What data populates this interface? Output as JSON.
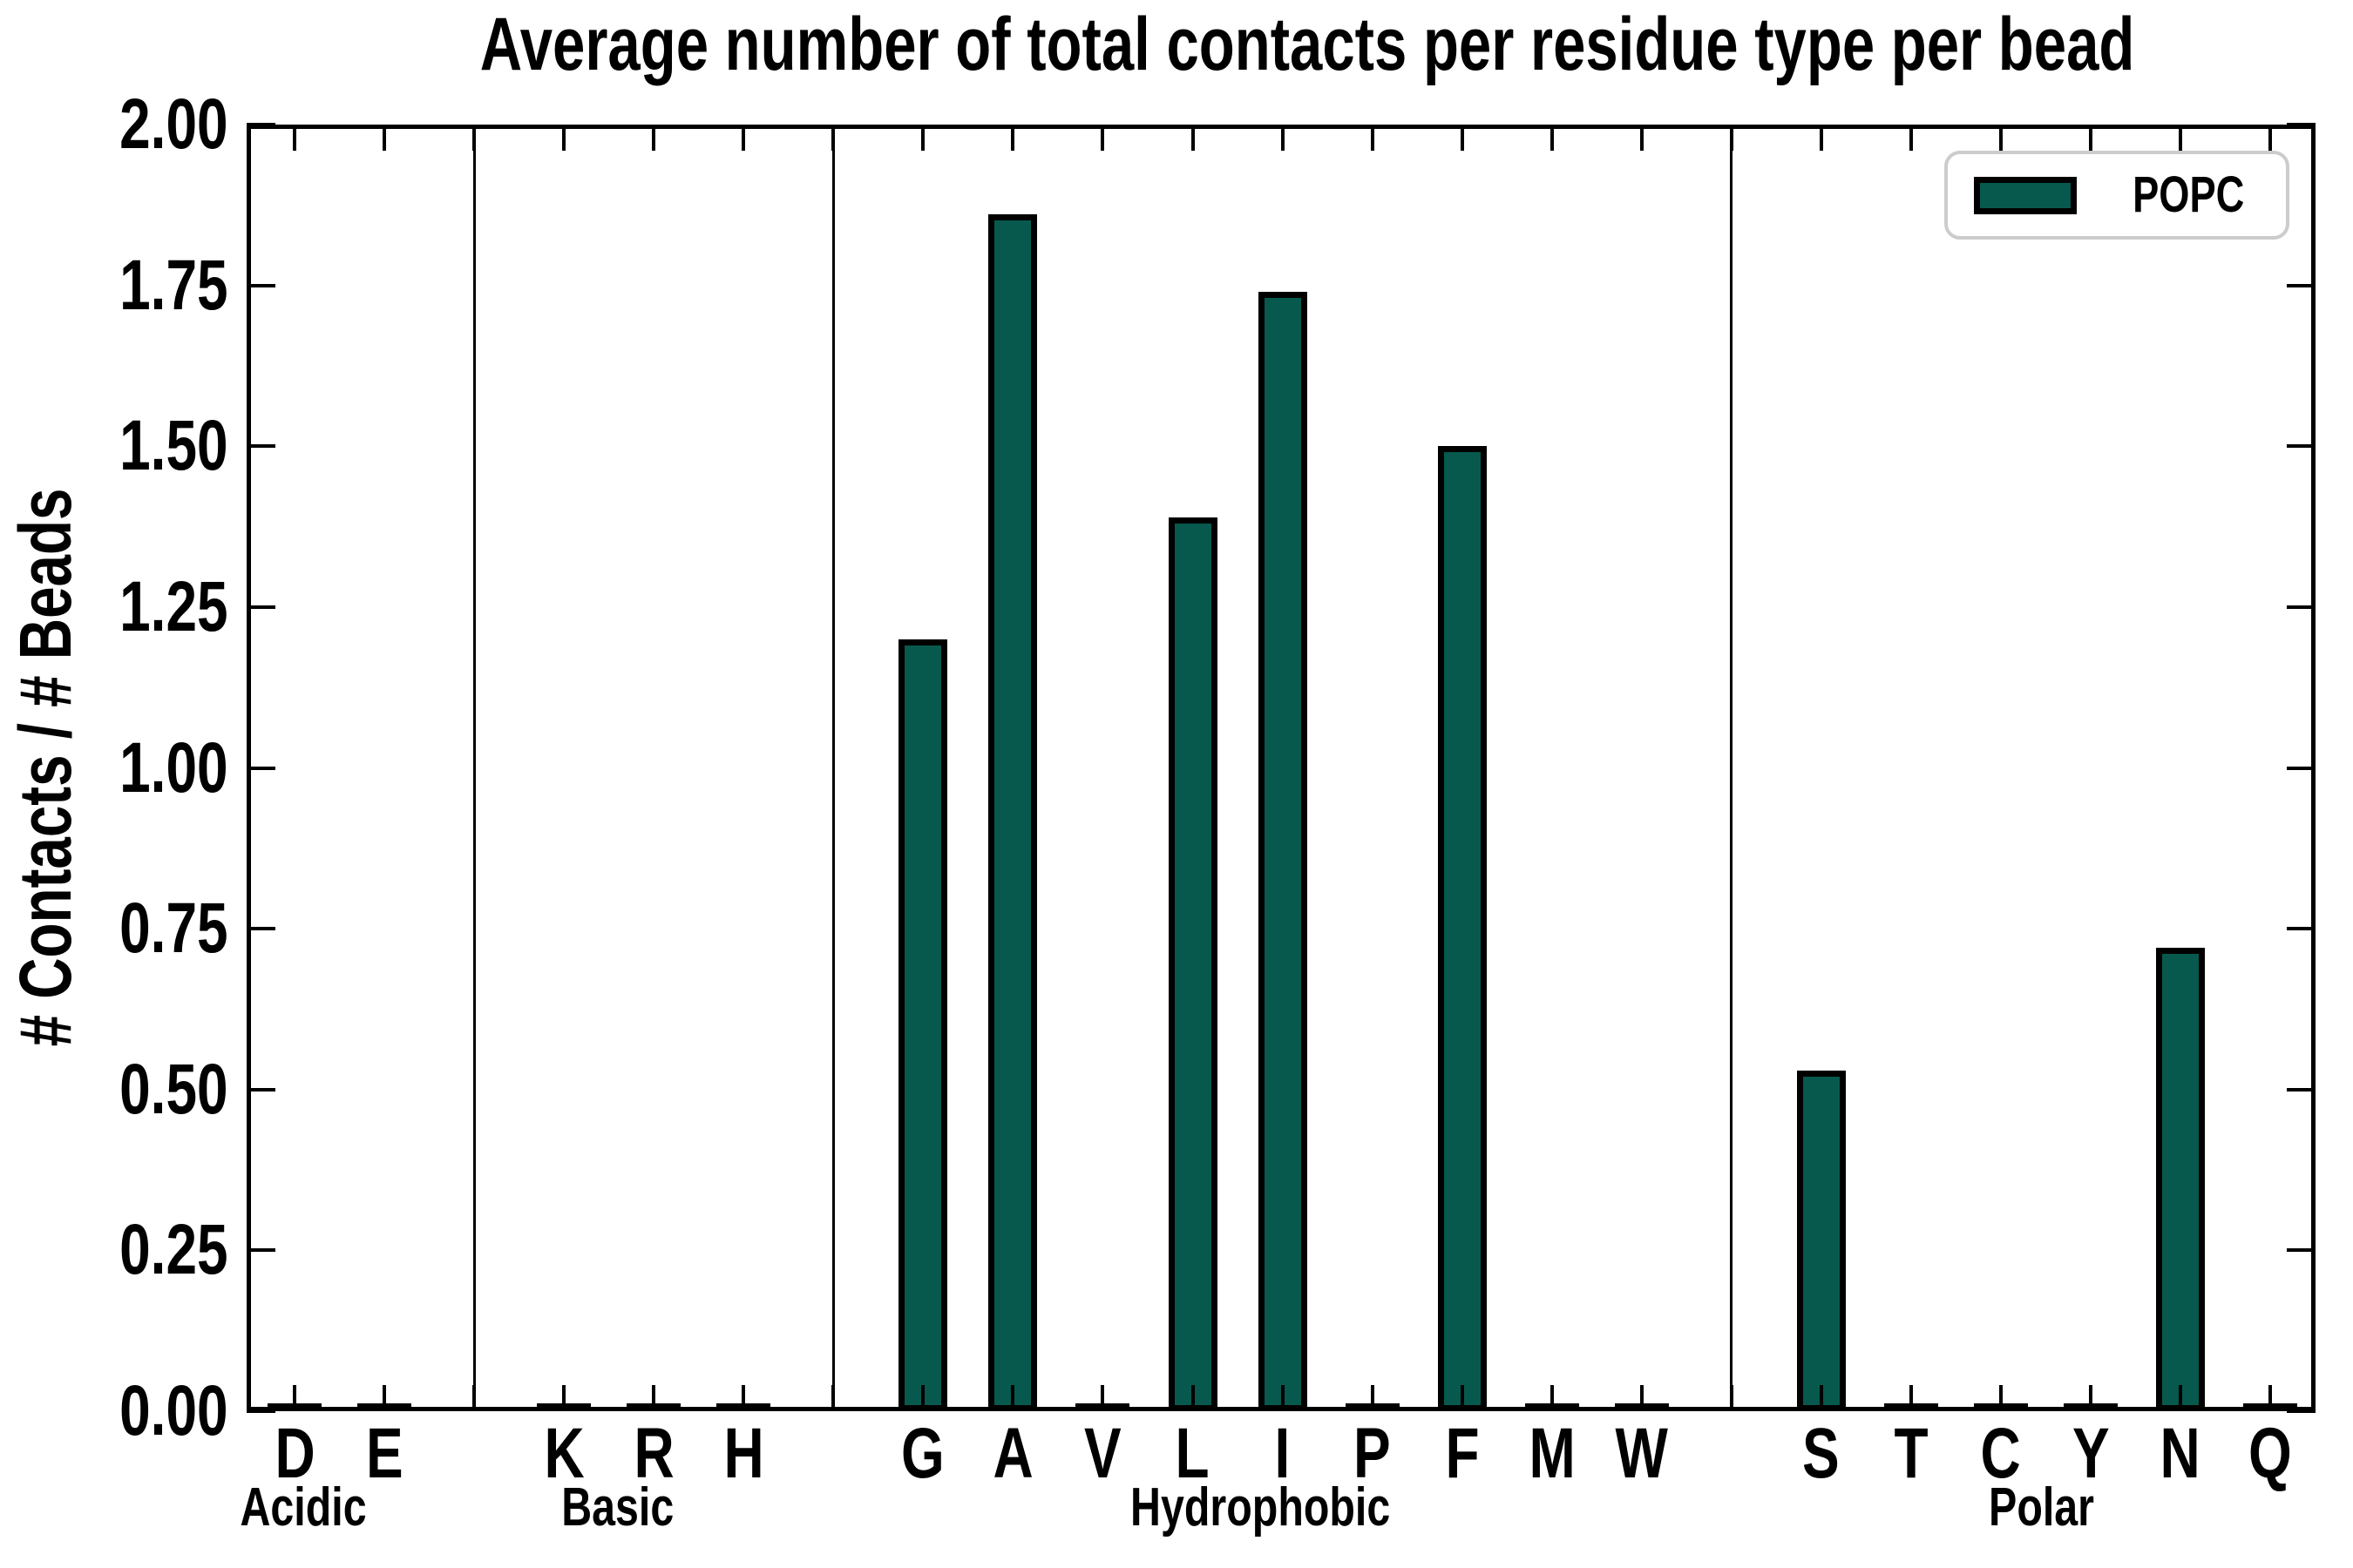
{
  "chart_data": {
    "type": "bar",
    "title": "Average number of total contacts per residue type per bead",
    "ylabel": "# Contacts / # Beads",
    "xlabel": "",
    "ylim": [
      0,
      2.0
    ],
    "ytick_step": 0.25,
    "ytick_labels": [
      "0.00",
      "0.25",
      "0.50",
      "0.75",
      "1.00",
      "1.25",
      "1.50",
      "1.75",
      "2.00"
    ],
    "grid": "off",
    "categories": [
      "D",
      "E",
      "K",
      "R",
      "H",
      "G",
      "A",
      "V",
      "L",
      "I",
      "P",
      "F",
      "M",
      "W",
      "S",
      "T",
      "C",
      "Y",
      "N",
      "Q"
    ],
    "values": [
      0,
      0,
      0,
      0,
      0,
      1.2,
      1.86,
      0,
      1.39,
      1.74,
      0,
      1.5,
      0,
      0,
      0.53,
      0,
      0,
      0,
      0.72,
      0
    ],
    "groups": [
      {
        "name": "Acidic",
        "residues": [
          "D",
          "E"
        ],
        "label_slot": 0.1
      },
      {
        "name": "Basic",
        "residues": [
          "K",
          "R",
          "H"
        ],
        "label_slot": 3.6
      },
      {
        "name": "Hydrophobic",
        "residues": [
          "G",
          "A",
          "V",
          "L",
          "I",
          "P",
          "F",
          "M",
          "W"
        ],
        "label_slot": 10.75
      },
      {
        "name": "Polar",
        "residues": [
          "S",
          "T",
          "C",
          "Y",
          "N",
          "Q"
        ],
        "label_slot": 19.45
      }
    ],
    "bar_color": "#07594e",
    "bar_edge_color": "#000000",
    "legend": {
      "position": "upper right",
      "entries": [
        {
          "label": "POPC",
          "color": "#07594e"
        }
      ]
    }
  }
}
